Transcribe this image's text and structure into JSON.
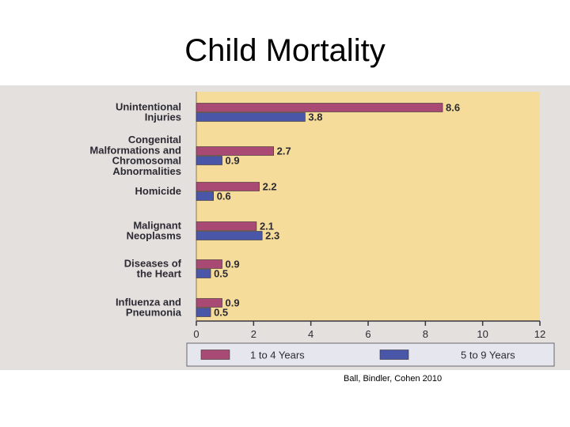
{
  "slide": {
    "title": "Child Mortality",
    "citation": "Ball, Bindler, Cohen 2010"
  },
  "chart_data": {
    "type": "bar",
    "orientation": "horizontal",
    "categories": [
      [
        "Unintentional",
        "Injuries"
      ],
      [
        "Congenital",
        "Malformations and",
        "Chromosomal",
        "Abnormalities"
      ],
      [
        "Homicide"
      ],
      [
        "Malignant",
        "Neoplasms"
      ],
      [
        "Diseases of",
        "the Heart"
      ],
      [
        "Influenza and",
        "Pneumonia"
      ]
    ],
    "series": [
      {
        "name": "1 to 4 Years",
        "color": "#a84a73",
        "values": [
          8.6,
          2.7,
          2.2,
          2.1,
          0.9,
          0.9
        ]
      },
      {
        "name": "5 to 9 Years",
        "color": "#4a56a8",
        "values": [
          3.8,
          0.9,
          0.6,
          2.3,
          0.5,
          0.5
        ]
      }
    ],
    "xlim": [
      0,
      12
    ],
    "xticks": [
      0,
      2,
      4,
      6,
      8,
      10,
      12
    ],
    "plot_background": "#f5dc9a",
    "legend_position": "bottom"
  }
}
